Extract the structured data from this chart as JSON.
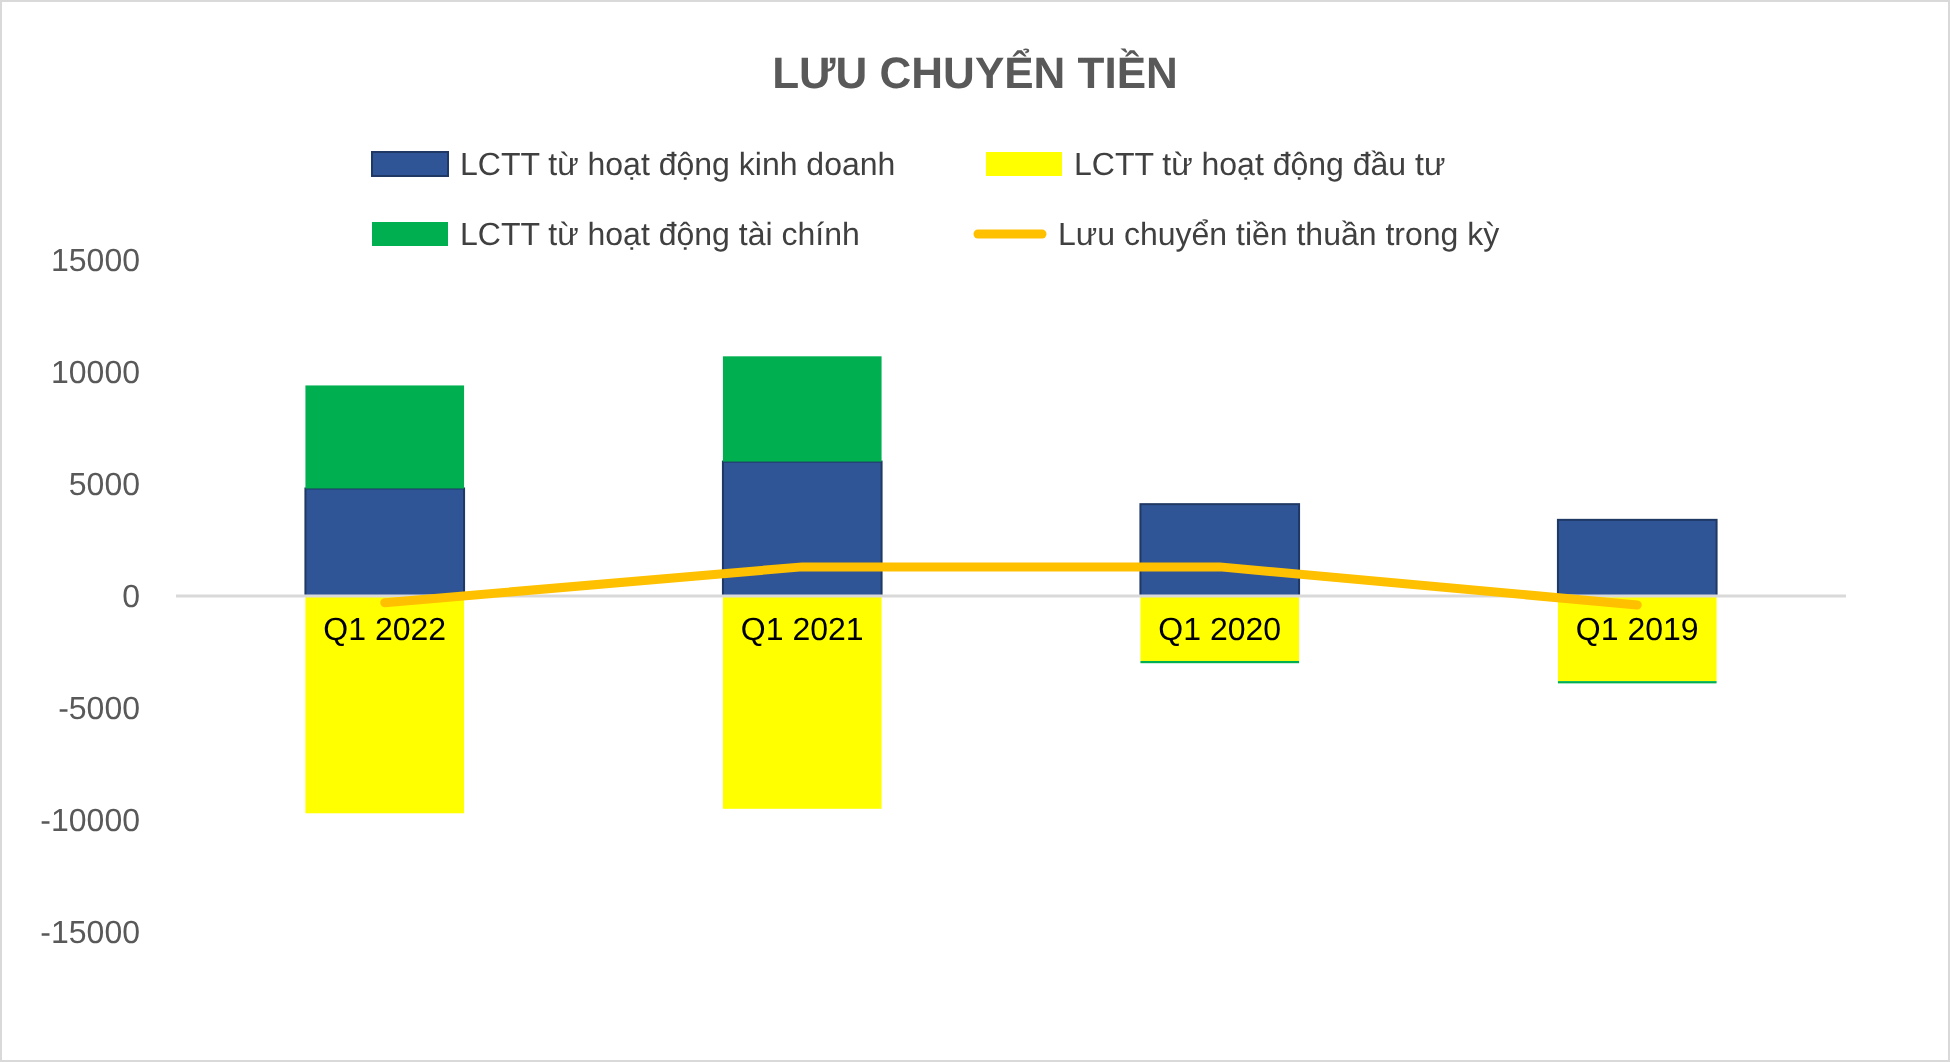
{
  "chart_data": {
    "type": "bar",
    "title": "LƯU CHUYỂN TIỀN",
    "categories": [
      "Q1 2022",
      "Q1 2021",
      "Q1 2020",
      "Q1 2019"
    ],
    "stacked": true,
    "series": [
      {
        "name": "LCTT từ hoạt động kinh doanh",
        "color": "#2f5597",
        "values": [
          4800,
          6000,
          4100,
          3400
        ]
      },
      {
        "name": "LCTT từ hoạt động đầu tư",
        "color": "#ffff00",
        "values": [
          -9700,
          -9500,
          -2900,
          -3800
        ]
      },
      {
        "name": "LCTT từ hoạt động tài chính",
        "color": "#00b050",
        "values": [
          4600,
          4700,
          -100,
          -100
        ]
      },
      {
        "name": "Lưu chuyển tiền thuần trong kỳ",
        "color": "#ffc000",
        "type": "line",
        "values": [
          -300,
          1300,
          1300,
          -400
        ]
      }
    ],
    "ylim": [
      -15000,
      15000
    ],
    "yticks": [
      -15000,
      -10000,
      -5000,
      0,
      5000,
      10000,
      15000
    ],
    "grid": false,
    "legend": "top",
    "marker": "none"
  }
}
